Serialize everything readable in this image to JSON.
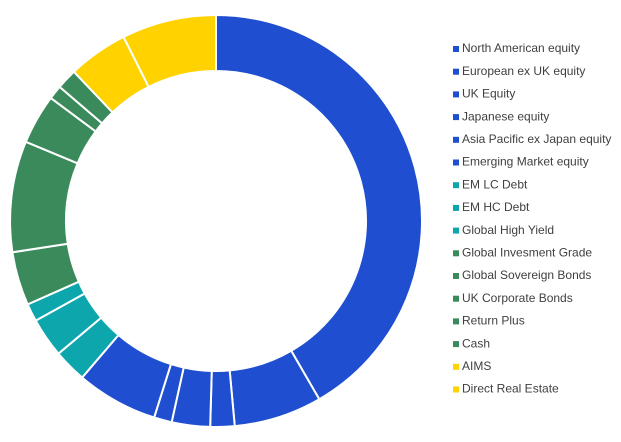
{
  "chart_data": {
    "type": "donut",
    "categories": [
      "North American equity",
      "European ex UK equity",
      "UK Equity",
      "Japanese equity",
      "Asia Pacific ex Japan equity",
      "Emerging Market equity",
      "EM LC Debt",
      "EM HC Debt",
      "Global High Yield",
      "Global Invesment Grade",
      "Global Sovereign Bonds",
      "UK Corporate Bonds",
      "Return Plus",
      "Cash",
      "AIMS",
      "Direct Real Estate"
    ],
    "values": [
      41.6,
      6.9,
      1.9,
      3.0,
      1.4,
      6.4,
      2.6,
      3.1,
      1.4,
      4.2,
      8.7,
      3.9,
      1.1,
      1.6,
      4.7,
      7.4
    ],
    "colors": [
      "#1f4ed0",
      "#1f4ed0",
      "#1f4ed0",
      "#1f4ed0",
      "#1f4ed0",
      "#1f4ed0",
      "#0ea6ad",
      "#0ea6ad",
      "#0ea6ad",
      "#3b8a5c",
      "#3b8a5c",
      "#3b8a5c",
      "#3b8a5c",
      "#3b8a5c",
      "#ffd200",
      "#ffd200"
    ],
    "legend": "right"
  }
}
